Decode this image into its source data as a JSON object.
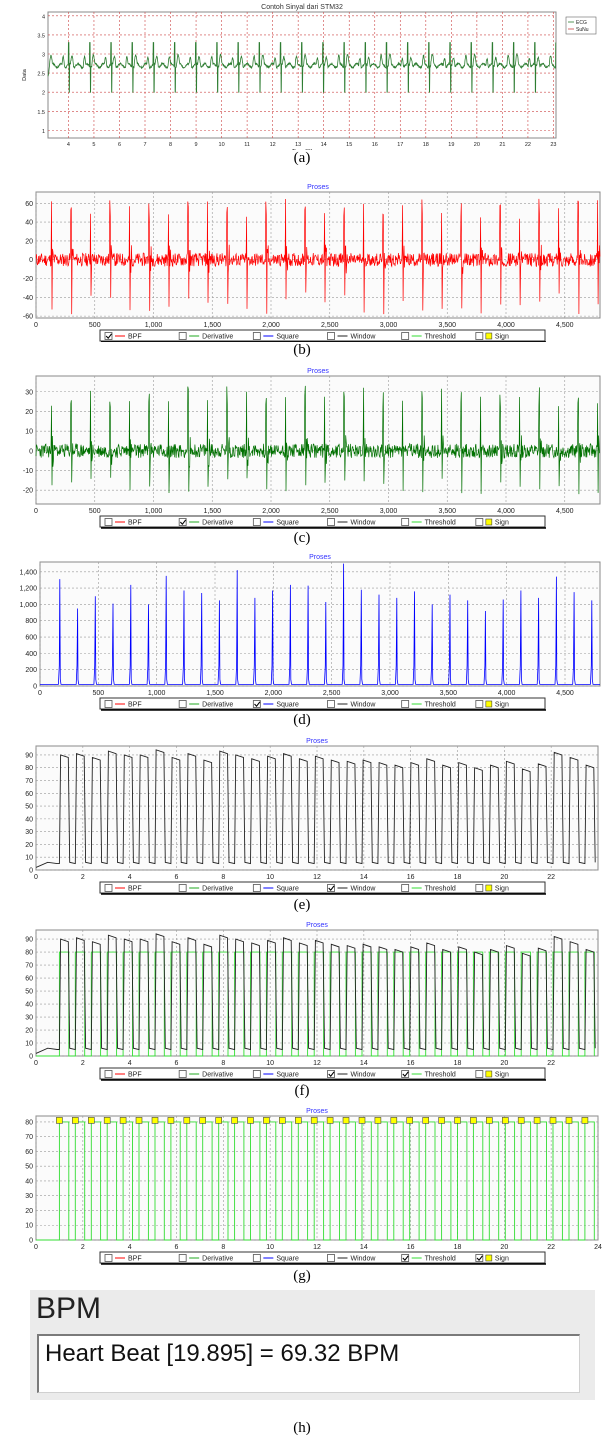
{
  "figure": {
    "captions": [
      "(a)",
      "(b)",
      "(c)",
      "(d)",
      "(e)",
      "(f)",
      "(g)",
      "(h)"
    ],
    "bpm": {
      "title": "BPM",
      "value_text": "Heart Beat [19.895] = 69.32 BPM"
    },
    "legend_labels": [
      "BPF",
      "Derivative",
      "Square",
      "Window",
      "Threshold",
      "Sign"
    ]
  },
  "chart_data": [
    {
      "id": "a",
      "type": "line",
      "title": "Contoh Sinyal dari STM32",
      "xlabel": "Time [S]",
      "ylabel": "Data",
      "xlim": [
        3.2,
        23.1
      ],
      "ylim": [
        0.8,
        4.1
      ],
      "xticks": [
        "4",
        "5",
        "6",
        "7",
        "8",
        "9",
        "10",
        "11",
        "12",
        "13",
        "14",
        "15",
        "16",
        "17",
        "18",
        "19",
        "20",
        "21",
        "22",
        "23"
      ],
      "yticks": [
        "1",
        "1.5",
        "2",
        "2.5",
        "3",
        "3.5",
        "4"
      ],
      "legend": [
        "ECG",
        "SuNu"
      ],
      "legend_position": "right",
      "series": [
        {
          "name": "ECG",
          "color": "#2e7d32",
          "baseline": 2.7,
          "peak": 3.3,
          "trough": 1.9,
          "beat_period_s": 0.83
        }
      ]
    },
    {
      "id": "b",
      "type": "line",
      "title": "Proses",
      "xlim": [
        0,
        4800
      ],
      "ylim": [
        -62,
        72
      ],
      "xticks": [
        "0",
        "500",
        "1,000",
        "1,500",
        "2,000",
        "2,500",
        "3,000",
        "3,500",
        "4,000",
        "4,500"
      ],
      "yticks": [
        "-60",
        "-40",
        "-20",
        "0",
        "20",
        "40",
        "60"
      ],
      "checked": [
        "BPF"
      ],
      "series": [
        {
          "name": "BPF",
          "color": "#ff0000",
          "peak": 65,
          "trough": -58,
          "beat_period_samples": 166
        }
      ]
    },
    {
      "id": "c",
      "type": "line",
      "title": "Proses",
      "xlim": [
        0,
        4800
      ],
      "ylim": [
        -27,
        38
      ],
      "xticks": [
        "0",
        "500",
        "1,000",
        "1,500",
        "2,000",
        "2,500",
        "3,000",
        "3,500",
        "4,000",
        "4,500"
      ],
      "yticks": [
        "-20",
        "-10",
        "0",
        "10",
        "20",
        "30"
      ],
      "checked": [
        "Derivative"
      ],
      "series": [
        {
          "name": "Derivative",
          "color": "#007000",
          "peak": 33,
          "trough": -22,
          "beat_period_samples": 166
        }
      ]
    },
    {
      "id": "d",
      "type": "line",
      "title": "Proses",
      "xlim": [
        0,
        4800
      ],
      "ylim": [
        0,
        1520
      ],
      "xticks": [
        "0",
        "500",
        "1,000",
        "1,500",
        "2,000",
        "2,500",
        "3,000",
        "3,500",
        "4,000",
        "4,500"
      ],
      "yticks": [
        "0",
        "200",
        "400",
        "600",
        "800",
        "1,000",
        "1,200",
        "1,400"
      ],
      "checked": [
        "Square"
      ],
      "series": [
        {
          "name": "Square",
          "color": "#0000ff",
          "peaks": [
            1310,
            950,
            1100,
            1010,
            1240,
            1000,
            1350,
            1170,
            1140,
            1050,
            1420,
            1080,
            1170,
            1240,
            1230,
            1030,
            1500,
            1180,
            1120,
            1080,
            1160,
            1000,
            1120,
            1050,
            920,
            1060,
            1170,
            1080,
            1340,
            1150,
            1050
          ]
        }
      ]
    },
    {
      "id": "e",
      "type": "line",
      "title": "Proses",
      "xlim": [
        0,
        24
      ],
      "ylim": [
        0,
        97
      ],
      "xticks": [
        "0",
        "2",
        "4",
        "6",
        "8",
        "10",
        "12",
        "14",
        "16",
        "18",
        "20",
        "22"
      ],
      "yticks": [
        "0",
        "10",
        "20",
        "30",
        "40",
        "50",
        "60",
        "70",
        "80",
        "90"
      ],
      "checked": [
        "Window"
      ],
      "series": [
        {
          "name": "Window",
          "color": "#222222",
          "plateaus": [
            90,
            91,
            88,
            93,
            90,
            90,
            94,
            88,
            91,
            86,
            93,
            90,
            87,
            89,
            91,
            87,
            89,
            86,
            85,
            86,
            84,
            82,
            84,
            87,
            82,
            84,
            80,
            82,
            85,
            79,
            83,
            92,
            88,
            82
          ]
        }
      ]
    },
    {
      "id": "f",
      "type": "line",
      "title": "Proses",
      "xlim": [
        0,
        24
      ],
      "ylim": [
        0,
        97
      ],
      "xticks": [
        "0",
        "2",
        "4",
        "6",
        "8",
        "10",
        "12",
        "14",
        "16",
        "18",
        "20",
        "22"
      ],
      "yticks": [
        "0",
        "10",
        "20",
        "30",
        "40",
        "50",
        "60",
        "70",
        "80",
        "90"
      ],
      "checked": [
        "Window",
        "Threshold"
      ],
      "series": [
        {
          "name": "Window",
          "color": "#222222"
        },
        {
          "name": "Threshold",
          "color": "#33dd33",
          "level": 80
        }
      ]
    },
    {
      "id": "g",
      "type": "line",
      "title": "Proses",
      "xlim": [
        0,
        24
      ],
      "ylim": [
        0,
        84
      ],
      "xticks": [
        "0",
        "2",
        "4",
        "6",
        "8",
        "10",
        "12",
        "14",
        "16",
        "18",
        "20",
        "22",
        "24"
      ],
      "yticks": [
        "0",
        "10",
        "20",
        "30",
        "40",
        "50",
        "60",
        "70",
        "80"
      ],
      "checked": [
        "Threshold",
        "Sign"
      ],
      "series": [
        {
          "name": "Threshold",
          "color": "#33dd33",
          "level": 80
        },
        {
          "name": "Sign",
          "color": "#ffff00",
          "level": 81
        }
      ]
    }
  ]
}
